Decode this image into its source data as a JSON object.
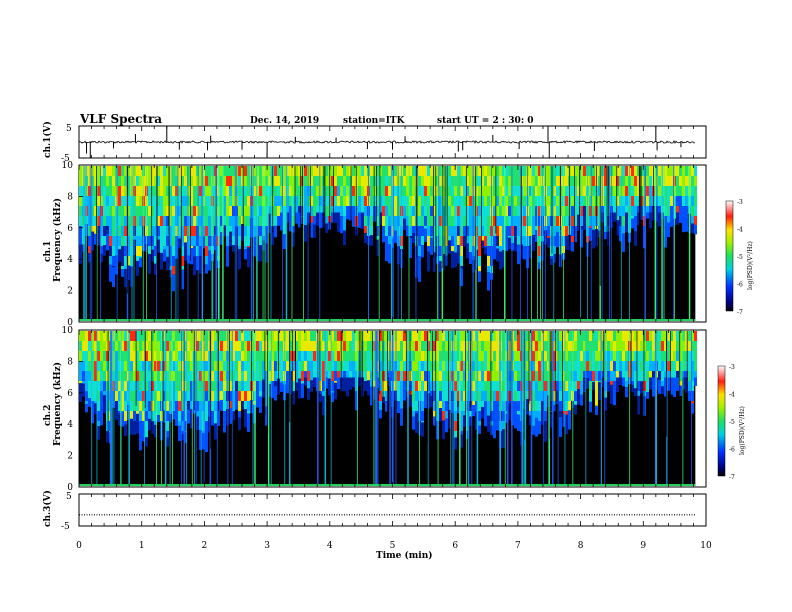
{
  "header": {
    "title": "VLF Spectra",
    "date": "Dec. 14, 2019",
    "station": "station=ITK",
    "start": "start  UT =   2  : 30: 0"
  },
  "chart_data": [
    {
      "type": "line",
      "name": "ch1-waveform",
      "ylabel": "ch.1(V)",
      "ylim": [
        -5,
        5
      ],
      "y_ticks": [
        "5",
        "-5"
      ],
      "xlim": [
        0,
        10
      ],
      "baseline": 0,
      "spikes": [
        {
          "x": 0.12,
          "y": -3.6
        },
        {
          "x": 0.18,
          "y": -5.0
        },
        {
          "x": 0.55,
          "y": -2.0
        },
        {
          "x": 0.9,
          "y": 2.5
        },
        {
          "x": 1.4,
          "y": 5.0
        },
        {
          "x": 1.6,
          "y": -2.4
        },
        {
          "x": 2.05,
          "y": -2.6
        },
        {
          "x": 2.1,
          "y": 2.0
        },
        {
          "x": 2.6,
          "y": -2.4
        },
        {
          "x": 3.0,
          "y": -5.0
        },
        {
          "x": 3.45,
          "y": 1.6
        },
        {
          "x": 4.1,
          "y": 1.4
        },
        {
          "x": 4.6,
          "y": -2.2
        },
        {
          "x": 5.0,
          "y": -2.4
        },
        {
          "x": 5.2,
          "y": 1.8
        },
        {
          "x": 6.05,
          "y": -3.0
        },
        {
          "x": 6.12,
          "y": -2.6
        },
        {
          "x": 6.6,
          "y": 2.2
        },
        {
          "x": 7.02,
          "y": -2.2
        },
        {
          "x": 7.48,
          "y": 5.0
        },
        {
          "x": 7.5,
          "y": -5.0
        },
        {
          "x": 8.22,
          "y": -2.8
        },
        {
          "x": 9.2,
          "y": 5.0
        },
        {
          "x": 9.22,
          "y": -2.6
        },
        {
          "x": 9.6,
          "y": -1.6
        }
      ]
    },
    {
      "type": "heatmap",
      "name": "ch1-spectrogram",
      "ylabel": "ch.1\nFrequency (kHz)",
      "ylim": [
        0,
        10
      ],
      "y_ticks": [
        "0",
        "2",
        "4",
        "6",
        "8",
        "10"
      ],
      "xlim": [
        0,
        9.83
      ],
      "colorbar_ticks": [
        "-3",
        "-4",
        "-5",
        "-6",
        "-7"
      ],
      "colorbar_label": "log(PSD)(V²/Hz)"
    },
    {
      "type": "heatmap",
      "name": "ch2-spectrogram",
      "ylabel": "ch.2\nFrequency (kHz)",
      "ylim": [
        0,
        10
      ],
      "y_ticks": [
        "0",
        "2",
        "4",
        "6",
        "8",
        "10"
      ],
      "xlim": [
        0,
        9.83
      ],
      "colorbar_ticks": [
        "-3",
        "-4",
        "-5",
        "-6",
        "-7"
      ],
      "colorbar_label": "log(PSD)(V²/Hz)"
    },
    {
      "type": "line",
      "name": "ch3-waveform",
      "ylabel": "ch.3(V)",
      "ylim": [
        -5,
        5
      ],
      "y_ticks": [
        "5",
        "-5"
      ],
      "xlim": [
        0,
        9.83
      ],
      "baseline": -1.5
    }
  ],
  "x_axis": {
    "label": "Time (min)",
    "ticks": [
      "0",
      "1",
      "2",
      "3",
      "4",
      "5",
      "6",
      "7",
      "8",
      "9",
      "10"
    ]
  },
  "colors": {
    "low": "#000000",
    "mid_low": "#1030ff",
    "mid": "#20d8c8",
    "mid_high": "#7ff000",
    "high": "#ff2020"
  }
}
